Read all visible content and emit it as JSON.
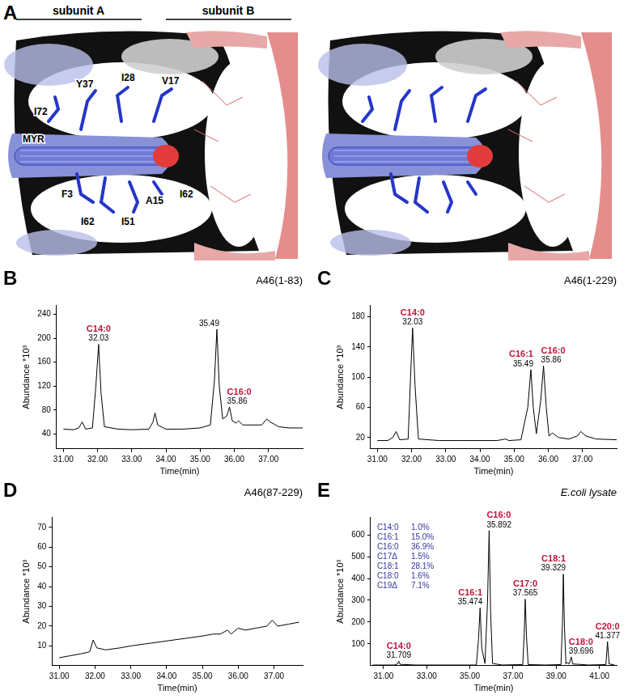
{
  "panel_a": {
    "panel": "A",
    "headers": [
      "subunit A",
      "subunit B"
    ],
    "labels": [
      "I72",
      "Y37",
      "I28",
      "V17",
      "MYR",
      "F3",
      "I62",
      "I51",
      "A15",
      "I62"
    ]
  },
  "chart_data": [
    {
      "panel": "B",
      "type": "line",
      "title": "A46(1-83)",
      "x_label": "Time(min)",
      "y_label": "Abundance *10³",
      "color": "#000000",
      "grid": false,
      "xlim": [
        30.8,
        38
      ],
      "xticks": [
        {
          "value": 31,
          "label": "31.00"
        },
        {
          "value": 32,
          "label": "32.00"
        },
        {
          "value": 33,
          "label": "33.00"
        },
        {
          "value": 34,
          "label": "34.00"
        },
        {
          "value": 35,
          "label": "35.00"
        },
        {
          "value": 36,
          "label": "36.00"
        },
        {
          "value": 37,
          "label": "37.00"
        }
      ],
      "ylim": [
        15,
        255
      ],
      "yticks": [
        40,
        80,
        120,
        160,
        200,
        240
      ],
      "x": [
        31.0,
        31.3,
        31.45,
        31.55,
        31.65,
        31.85,
        31.95,
        32.03,
        32.1,
        32.2,
        32.6,
        33.0,
        33.5,
        33.62,
        33.68,
        33.76,
        34.0,
        34.5,
        35.0,
        35.3,
        35.42,
        35.49,
        35.56,
        35.66,
        35.78,
        35.86,
        35.94,
        36.05,
        36.12,
        36.25,
        36.5,
        36.8,
        36.95,
        37.05,
        37.3,
        37.6,
        38.0
      ],
      "values": [
        48,
        47,
        50,
        60,
        48,
        50,
        120,
        190,
        110,
        52,
        48,
        47,
        48,
        60,
        75,
        55,
        48,
        48,
        50,
        55,
        130,
        215,
        120,
        65,
        70,
        85,
        62,
        58,
        62,
        55,
        55,
        55,
        65,
        60,
        52,
        50,
        50
      ],
      "annotations": [
        {
          "x": 32.03,
          "y": 190,
          "label": "32.03",
          "compound": "C14:0"
        },
        {
          "x": 35.49,
          "y": 215,
          "label": "35.49"
        },
        {
          "x": 35.86,
          "y": 85,
          "label": "35.86",
          "compound": "C16:0"
        }
      ]
    },
    {
      "panel": "C",
      "type": "line",
      "title": "A46(1-229)",
      "x_label": "Time(min)",
      "y_label": "Abundance *10³",
      "color": "#000000",
      "grid": false,
      "xlim": [
        30.8,
        38
      ],
      "xticks": [
        {
          "value": 31,
          "label": "31.00"
        },
        {
          "value": 32,
          "label": "32.00"
        },
        {
          "value": 33,
          "label": "33.00"
        },
        {
          "value": 34,
          "label": "34.00"
        },
        {
          "value": 35,
          "label": "35.00"
        },
        {
          "value": 36,
          "label": "36.00"
        },
        {
          "value": 37,
          "label": "37.00"
        }
      ],
      "ylim": [
        5,
        195
      ],
      "yticks": [
        20,
        60,
        100,
        140,
        180
      ],
      "x": [
        31.0,
        31.3,
        31.45,
        31.55,
        31.65,
        31.9,
        31.97,
        32.03,
        32.1,
        32.2,
        32.8,
        33.5,
        34.5,
        34.75,
        34.85,
        35.2,
        35.4,
        35.49,
        35.56,
        35.65,
        35.78,
        35.86,
        35.94,
        36.02,
        36.12,
        36.3,
        36.6,
        36.85,
        36.95,
        37.1,
        37.4,
        38.0
      ],
      "values": [
        16,
        16,
        20,
        28,
        17,
        18,
        100,
        165,
        90,
        18,
        16,
        16,
        16,
        18,
        16,
        17,
        60,
        110,
        60,
        25,
        70,
        115,
        60,
        22,
        26,
        20,
        18,
        22,
        28,
        22,
        18,
        17
      ],
      "annotations": [
        {
          "x": 32.03,
          "y": 165,
          "label": "32.03",
          "compound": "C14:0"
        },
        {
          "x": 35.49,
          "y": 110,
          "label": "35.49",
          "compound": "C16:1"
        },
        {
          "x": 35.86,
          "y": 115,
          "label": "35.86",
          "compound": "C16:0"
        }
      ]
    },
    {
      "panel": "D",
      "type": "line",
      "title": "A46(87-229)",
      "x_label": "Time(min)",
      "y_label": "Abundance *10³",
      "color": "#000000",
      "grid": false,
      "xlim": [
        30.8,
        37.8
      ],
      "xticks": [
        {
          "value": 31,
          "label": "31.00"
        },
        {
          "value": 32,
          "label": "32.00"
        },
        {
          "value": 33,
          "label": "33.00"
        },
        {
          "value": 34,
          "label": "34.00"
        },
        {
          "value": 35,
          "label": "35.00"
        },
        {
          "value": 36,
          "label": "36.00"
        },
        {
          "value": 37,
          "label": "37.00"
        }
      ],
      "ylim": [
        0,
        75
      ],
      "yticks": [
        10,
        20,
        30,
        40,
        50,
        60,
        70
      ],
      "x": [
        31.0,
        31.3,
        31.6,
        31.85,
        31.95,
        32.05,
        32.3,
        32.7,
        33.0,
        33.4,
        33.8,
        34.2,
        34.6,
        35.0,
        35.3,
        35.5,
        35.7,
        35.8,
        36.0,
        36.2,
        36.5,
        36.8,
        36.95,
        37.1,
        37.4,
        37.7
      ],
      "values": [
        4,
        5,
        6,
        7,
        13,
        9,
        8,
        9,
        10,
        11,
        12,
        13,
        14,
        15,
        16,
        16,
        18,
        16,
        19,
        18,
        19,
        20,
        23,
        20,
        21,
        22
      ]
    },
    {
      "panel": "E",
      "type": "line",
      "title": "E.coli lysate",
      "x_label": "Time(min)",
      "y_label": "Abundance *10³",
      "color": "#000000",
      "grid": false,
      "xlim": [
        30.4,
        41.8
      ],
      "xticks": [
        {
          "value": 31,
          "label": "31.00"
        },
        {
          "value": 33,
          "label": "33.00"
        },
        {
          "value": 35,
          "label": "35.00"
        },
        {
          "value": 37,
          "label": "37.00"
        },
        {
          "value": 39,
          "label": "39.00"
        },
        {
          "value": 41,
          "label": "41.00"
        }
      ],
      "ylim": [
        0,
        680
      ],
      "yticks": [
        100,
        200,
        300,
        400,
        500,
        600
      ],
      "x": [
        30.5,
        31.5,
        31.65,
        31.709,
        31.77,
        32.5,
        33.5,
        34.5,
        35.3,
        35.4,
        35.474,
        35.55,
        35.7,
        35.82,
        35.892,
        35.96,
        36.05,
        36.5,
        37.45,
        37.52,
        37.565,
        37.62,
        37.7,
        38.5,
        39.22,
        39.29,
        39.329,
        39.38,
        39.45,
        39.5,
        39.6,
        39.696,
        39.76,
        40.5,
        41.3,
        41.377,
        41.45,
        41.7
      ],
      "values": [
        3,
        3,
        8,
        20,
        6,
        3,
        3,
        3,
        3,
        120,
        265,
        80,
        10,
        300,
        620,
        250,
        10,
        3,
        5,
        150,
        305,
        140,
        5,
        3,
        5,
        200,
        420,
        180,
        8,
        15,
        8,
        40,
        8,
        3,
        5,
        110,
        8,
        3
      ],
      "annotations": [
        {
          "x": 31.709,
          "y": 20,
          "label": "31.709",
          "compound": "C14:0"
        },
        {
          "x": 35.474,
          "y": 265,
          "label": "35.474",
          "compound": "C16:1"
        },
        {
          "x": 35.892,
          "y": 620,
          "label": "35.892",
          "compound": "C16:0"
        },
        {
          "x": 37.565,
          "y": 305,
          "label": "37.565",
          "compound": "C17:0"
        },
        {
          "x": 39.329,
          "y": 420,
          "label": "39.329",
          "compound": "C18:1"
        },
        {
          "x": 39.696,
          "y": 40,
          "label": "39.696",
          "compound": "C18:0"
        },
        {
          "x": 41.377,
          "y": 110,
          "label": "41.377",
          "compound": "C20:0"
        }
      ],
      "composition": [
        {
          "name": "C14:0",
          "label": "1.0%"
        },
        {
          "name": "C16:1",
          "label": "15.0%"
        },
        {
          "name": "C16:0",
          "label": "36.9%"
        },
        {
          "name": "C17Δ",
          "label": "1.5%"
        },
        {
          "name": "C18:1",
          "label": "28.1%"
        },
        {
          "name": "C18:0",
          "label": "1.6%"
        },
        {
          "name": "C19Δ",
          "label": "7.1%"
        }
      ]
    }
  ]
}
